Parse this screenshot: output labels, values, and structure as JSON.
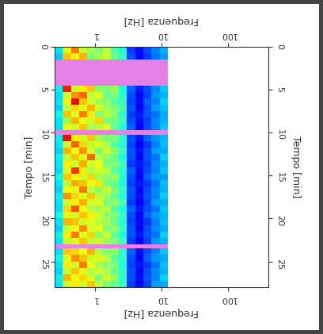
{
  "chart_data": {
    "type": "heatmap",
    "x_label": "Frequenza [Hz]",
    "y_label": "Tempo [min]",
    "log": "x",
    "color": "jet",
    "tick_labels": true,
    "xlim": [
      0.25,
      400
    ],
    "xticks": [
      1,
      10,
      100
    ],
    "ylim": [
      0,
      28
    ],
    "yticks": [
      0,
      5,
      10,
      15,
      20,
      25
    ],
    "color_range": [
      0,
      1
    ],
    "freq_edges": [
      0.25,
      0.33,
      0.44,
      0.58,
      0.77,
      1.0,
      1.3,
      1.75,
      2.3,
      3.0,
      4.0,
      5.3,
      7.0,
      9.4,
      12.5
    ],
    "time_edges": [
      0,
      0.75,
      1.5,
      4.5,
      5.25,
      6,
      6.75,
      7.5,
      8.25,
      9,
      9.75,
      10.25,
      11,
      11.75,
      12.5,
      13.25,
      14,
      14.75,
      15.5,
      16.25,
      17,
      17.75,
      18.5,
      19.25,
      20,
      20.75,
      21.5,
      22.25,
      23,
      23.5,
      24.25,
      25,
      25.75,
      26.5,
      27.25,
      28
    ],
    "cells": [
      [
        0.35,
        0.62,
        0.78,
        0.6,
        0.55,
        0.5,
        0.58,
        0.45,
        0.4,
        0.18,
        0.14,
        0.2,
        0.25,
        0.3
      ],
      [
        0.32,
        0.7,
        0.65,
        0.72,
        0.5,
        0.55,
        0.6,
        0.48,
        0.42,
        0.2,
        0.12,
        0.18,
        0.24,
        0.28
      ],
      null,
      [
        0.36,
        0.88,
        0.6,
        0.66,
        0.7,
        0.52,
        0.5,
        0.55,
        0.38,
        0.22,
        0.15,
        0.2,
        0.26,
        0.32
      ],
      [
        0.34,
        0.6,
        0.75,
        0.8,
        0.58,
        0.62,
        0.48,
        0.5,
        0.4,
        0.2,
        0.13,
        0.19,
        0.27,
        0.3
      ],
      [
        0.35,
        0.65,
        0.9,
        0.7,
        0.6,
        0.55,
        0.52,
        0.46,
        0.42,
        0.19,
        0.14,
        0.22,
        0.25,
        0.33
      ],
      [
        0.33,
        0.58,
        0.68,
        0.62,
        0.72,
        0.6,
        0.55,
        0.5,
        0.44,
        0.21,
        0.12,
        0.2,
        0.28,
        0.31
      ],
      [
        0.37,
        0.7,
        0.62,
        0.78,
        0.66,
        0.5,
        0.58,
        0.52,
        0.4,
        0.18,
        0.15,
        0.21,
        0.24,
        0.29
      ],
      [
        0.35,
        0.55,
        0.72,
        0.64,
        0.6,
        0.68,
        0.5,
        0.48,
        0.43,
        0.2,
        0.14,
        0.19,
        0.26,
        0.3
      ],
      [
        0.34,
        0.63,
        0.6,
        0.7,
        0.55,
        0.58,
        0.62,
        0.47,
        0.39,
        0.22,
        0.13,
        0.2,
        0.25,
        0.32
      ],
      null,
      [
        0.36,
        0.9,
        0.66,
        0.6,
        0.7,
        0.55,
        0.5,
        0.5,
        0.41,
        0.2,
        0.15,
        0.22,
        0.27,
        0.3
      ],
      [
        0.35,
        0.6,
        0.8,
        0.68,
        0.58,
        0.62,
        0.56,
        0.45,
        0.4,
        0.19,
        0.12,
        0.18,
        0.25,
        0.31
      ],
      [
        0.33,
        0.72,
        0.64,
        0.75,
        0.62,
        0.5,
        0.6,
        0.52,
        0.42,
        0.21,
        0.14,
        0.2,
        0.28,
        0.29
      ],
      [
        0.36,
        0.58,
        0.7,
        0.62,
        0.8,
        0.57,
        0.52,
        0.48,
        0.38,
        0.2,
        0.13,
        0.21,
        0.24,
        0.33
      ],
      [
        0.35,
        0.66,
        0.6,
        0.72,
        0.6,
        0.64,
        0.5,
        0.5,
        0.43,
        0.18,
        0.15,
        0.19,
        0.26,
        0.3
      ],
      [
        0.34,
        0.62,
        0.85,
        0.66,
        0.56,
        0.6,
        0.58,
        0.46,
        0.41,
        0.22,
        0.14,
        0.2,
        0.25,
        0.32
      ],
      [
        0.37,
        0.7,
        0.64,
        0.6,
        0.68,
        0.55,
        0.52,
        0.53,
        0.4,
        0.2,
        0.12,
        0.22,
        0.27,
        0.28
      ],
      [
        0.35,
        0.57,
        0.73,
        0.7,
        0.62,
        0.66,
        0.5,
        0.47,
        0.39,
        0.19,
        0.15,
        0.18,
        0.24,
        0.31
      ],
      [
        0.33,
        0.64,
        0.62,
        0.78,
        0.58,
        0.52,
        0.6,
        0.5,
        0.42,
        0.21,
        0.13,
        0.2,
        0.26,
        0.3
      ],
      [
        0.36,
        0.75,
        0.68,
        0.62,
        0.7,
        0.58,
        0.54,
        0.48,
        0.4,
        0.2,
        0.14,
        0.21,
        0.25,
        0.33
      ],
      [
        0.35,
        0.6,
        0.66,
        0.72,
        0.6,
        0.62,
        0.5,
        0.52,
        0.43,
        0.18,
        0.12,
        0.19,
        0.28,
        0.29
      ],
      [
        0.34,
        0.68,
        0.82,
        0.65,
        0.57,
        0.55,
        0.58,
        0.46,
        0.38,
        0.22,
        0.15,
        0.2,
        0.24,
        0.32
      ],
      [
        0.37,
        0.62,
        0.6,
        0.7,
        0.66,
        0.6,
        0.52,
        0.5,
        0.41,
        0.2,
        0.13,
        0.22,
        0.27,
        0.3
      ],
      [
        0.35,
        0.72,
        0.7,
        0.6,
        0.62,
        0.57,
        0.55,
        0.48,
        0.4,
        0.19,
        0.14,
        0.18,
        0.25,
        0.31
      ],
      [
        0.33,
        0.58,
        0.64,
        0.76,
        0.6,
        0.64,
        0.5,
        0.53,
        0.42,
        0.21,
        0.12,
        0.2,
        0.26,
        0.29
      ],
      [
        0.36,
        0.66,
        0.78,
        0.62,
        0.68,
        0.52,
        0.6,
        0.47,
        0.39,
        0.2,
        0.15,
        0.21,
        0.24,
        0.33
      ],
      [
        0.35,
        0.6,
        0.62,
        0.7,
        0.58,
        0.6,
        0.54,
        0.5,
        0.43,
        0.18,
        0.13,
        0.19,
        0.28,
        0.3
      ],
      null,
      [
        0.34,
        0.7,
        0.68,
        0.64,
        0.72,
        0.56,
        0.5,
        0.52,
        0.4,
        0.22,
        0.14,
        0.2,
        0.25,
        0.32
      ],
      [
        0.37,
        0.62,
        0.75,
        0.7,
        0.6,
        0.62,
        0.58,
        0.46,
        0.41,
        0.2,
        0.12,
        0.22,
        0.27,
        0.29
      ],
      [
        0.35,
        0.66,
        0.6,
        0.78,
        0.64,
        0.55,
        0.52,
        0.5,
        0.38,
        0.19,
        0.15,
        0.18,
        0.24,
        0.31
      ],
      [
        0.33,
        0.58,
        0.7,
        0.62,
        0.56,
        0.6,
        0.56,
        0.48,
        0.42,
        0.21,
        0.13,
        0.2,
        0.26,
        0.3
      ],
      [
        0.36,
        0.72,
        0.64,
        0.68,
        0.62,
        0.5,
        0.6,
        0.53,
        0.4,
        0.2,
        0.14,
        0.21,
        0.25,
        0.33
      ],
      [
        0.35,
        0.6,
        0.66,
        0.6,
        0.7,
        0.58,
        0.5,
        0.47,
        0.43,
        0.18,
        0.12,
        0.19,
        0.28,
        0.29
      ]
    ]
  }
}
